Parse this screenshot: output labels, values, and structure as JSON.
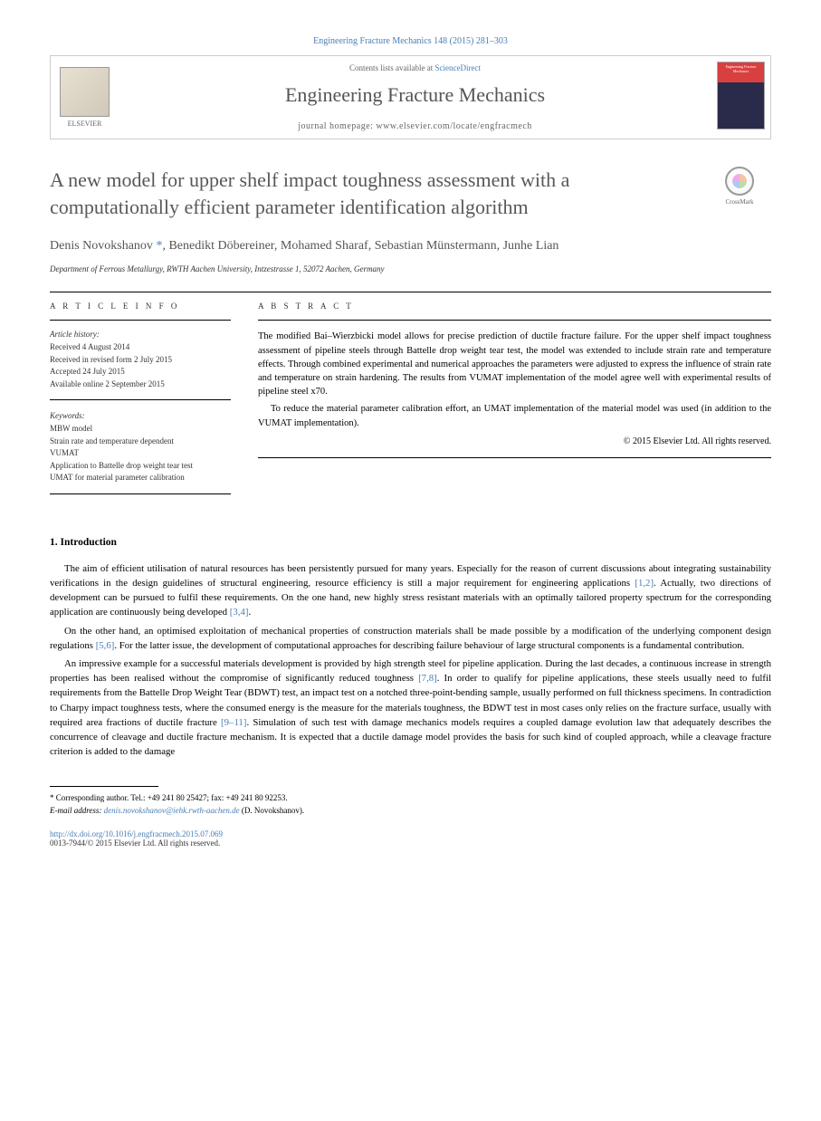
{
  "citation": "Engineering Fracture Mechanics 148 (2015) 281–303",
  "header": {
    "contents_prefix": "Contents lists available at ",
    "contents_link": "ScienceDirect",
    "journal": "Engineering Fracture Mechanics",
    "homepage_prefix": "journal homepage: ",
    "homepage_url": "www.elsevier.com/locate/engfracmech",
    "publisher": "ELSEVIER",
    "cover_title": "Engineering Fracture Mechanics"
  },
  "title": "A new model for upper shelf impact toughness assessment with a computationally efficient parameter identification algorithm",
  "crossmark": "CrossMark",
  "authors": "Denis Novokshanov *, Benedikt Döbereiner, Mohamed Sharaf, Sebastian Münstermann, Junhe Lian",
  "affiliation": "Department of Ferrous Metallurgy, RWTH Aachen University, Intzestrasse 1, 52072 Aachen, Germany",
  "article_info": {
    "heading": "A R T I C L E   I N F O",
    "history_label": "Article history:",
    "history": [
      "Received 4 August 2014",
      "Received in revised form 2 July 2015",
      "Accepted 24 July 2015",
      "Available online 2 September 2015"
    ],
    "keywords_label": "Keywords:",
    "keywords": [
      "MBW model",
      "Strain rate and temperature dependent",
      "VUMAT",
      "Application to Battelle drop weight tear test",
      "UMAT for material parameter calibration"
    ]
  },
  "abstract": {
    "heading": "A B S T R A C T",
    "p1": "The modified Bai–Wierzbicki model allows for precise prediction of ductile fracture failure. For the upper shelf impact toughness assessment of pipeline steels through Battelle drop weight tear test, the model was extended to include strain rate and temperature effects. Through combined experimental and numerical approaches the parameters were adjusted to express the influence of strain rate and temperature on strain hardening. The results from VUMAT implementation of the model agree well with experimental results of pipeline steel x70.",
    "p2": "To reduce the material parameter calibration effort, an UMAT implementation of the material model was used (in addition to the VUMAT implementation).",
    "copyright": "© 2015 Elsevier Ltd. All rights reserved."
  },
  "section1": {
    "heading": "1. Introduction",
    "p1_a": "The aim of efficient utilisation of natural resources has been persistently pursued for many years. Especially for the reason of current discussions about integrating sustainability verifications in the design guidelines of structural engineering, resource efficiency is still a major requirement for engineering applications ",
    "p1_ref1": "[1,2]",
    "p1_b": ". Actually, two directions of development can be pursued to fulfil these requirements. On the one hand, new highly stress resistant materials with an optimally tailored property spectrum for the corresponding application are continuously being developed ",
    "p1_ref2": "[3,4]",
    "p1_c": ".",
    "p2_a": "On the other hand, an optimised exploitation of mechanical properties of construction materials shall be made possible by a modification of the underlying component design regulations ",
    "p2_ref1": "[5,6]",
    "p2_b": ". For the latter issue, the development of computational approaches for describing failure behaviour of large structural components is a fundamental contribution.",
    "p3_a": "An impressive example for a successful materials development is provided by high strength steel for pipeline application. During the last decades, a continuous increase in strength properties has been realised without the compromise of significantly reduced toughness ",
    "p3_ref1": "[7,8]",
    "p3_b": ". In order to qualify for pipeline applications, these steels usually need to fulfil requirements from the Battelle Drop Weight Tear (BDWT) test, an impact test on a notched three-point-bending sample, usually performed on full thickness specimens. In contradiction to Charpy impact toughness tests, where the consumed energy is the measure for the materials toughness, the BDWT test in most cases only relies on the fracture surface, usually with required area fractions of ductile fracture ",
    "p3_ref2": "[9–11]",
    "p3_c": ". Simulation of such test with damage mechanics models requires a coupled damage evolution law that adequately describes the concurrence of cleavage and ductile fracture mechanism. It is expected that a ductile damage model provides the basis for such kind of coupled approach, while a cleavage fracture criterion is added to the damage"
  },
  "footnote": {
    "corresponding": "* Corresponding author. Tel.: +49 241 80 25427; fax: +49 241 80 92253.",
    "email_label": "E-mail address: ",
    "email": "denis.novokshanov@iehk.rwth-aachen.de",
    "email_suffix": " (D. Novokshanov)."
  },
  "doi": "http://dx.doi.org/10.1016/j.engfracmech.2015.07.069",
  "issn": "0013-7944/© 2015 Elsevier Ltd. All rights reserved."
}
